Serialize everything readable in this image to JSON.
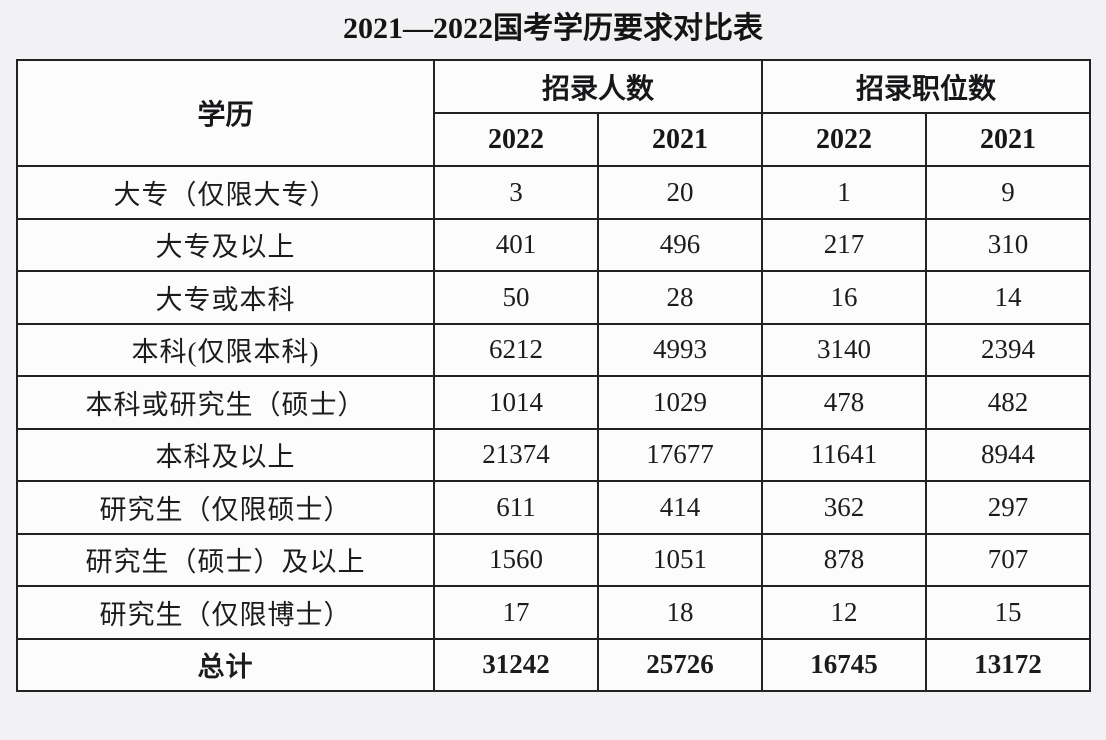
{
  "title": "2021—2022国考学历要求对比表",
  "table": {
    "header": {
      "education": "学历",
      "recruit_count": "招录人数",
      "position_count": "招录职位数",
      "years": [
        "2022",
        "2021",
        "2022",
        "2021"
      ]
    },
    "rows": [
      {
        "label": "大专（仅限大专）",
        "values": [
          "3",
          "20",
          "1",
          "9"
        ]
      },
      {
        "label": "大专及以上",
        "values": [
          "401",
          "496",
          "217",
          "310"
        ]
      },
      {
        "label": "大专或本科",
        "values": [
          "50",
          "28",
          "16",
          "14"
        ]
      },
      {
        "label": "本科(仅限本科)",
        "values": [
          "6212",
          "4993",
          "3140",
          "2394"
        ]
      },
      {
        "label": "本科或研究生（硕士）",
        "values": [
          "1014",
          "1029",
          "478",
          "482"
        ]
      },
      {
        "label": "本科及以上",
        "values": [
          "21374",
          "17677",
          "11641",
          "8944"
        ]
      },
      {
        "label": "研究生（仅限硕士）",
        "values": [
          "611",
          "414",
          "362",
          "297"
        ]
      },
      {
        "label": "研究生（硕士）及以上",
        "values": [
          "1560",
          "1051",
          "878",
          "707"
        ]
      },
      {
        "label": "研究生（仅限博士）",
        "values": [
          "17",
          "18",
          "12",
          "15"
        ]
      }
    ],
    "total": {
      "label": "总计",
      "values": [
        "31242",
        "25726",
        "16745",
        "13172"
      ]
    }
  },
  "colors": {
    "page_background": "#f2f2f4",
    "cell_background": "#fcfcfd",
    "border": "#222225",
    "text": "#1c1c1c"
  }
}
